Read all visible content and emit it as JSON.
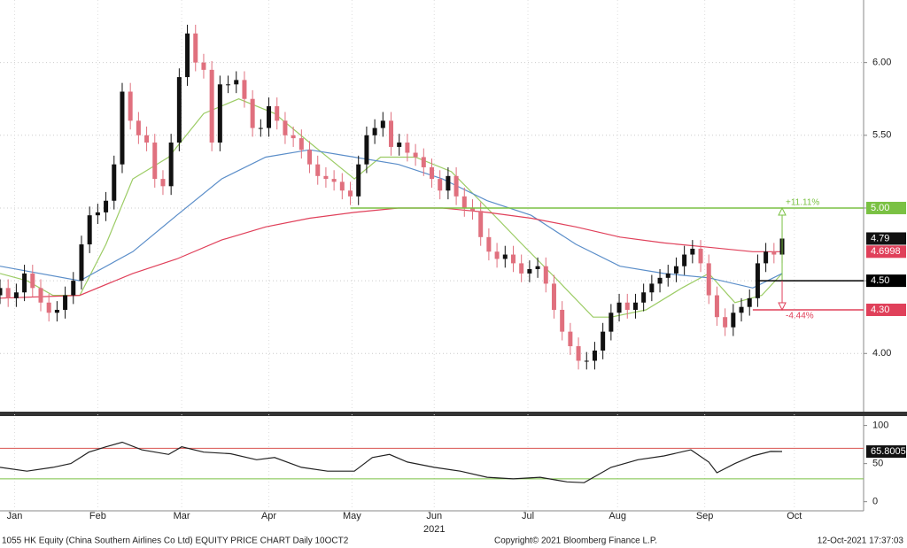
{
  "chart_data": [
    {
      "type": "candlestick",
      "xlim": [
        0,
        106
      ],
      "xticks": [
        {
          "value": 1.8,
          "label": "Jan"
        },
        {
          "value": 12,
          "label": "Feb"
        },
        {
          "value": 22.3,
          "label": "Mar"
        },
        {
          "value": 33,
          "label": "Apr"
        },
        {
          "value": 43.2,
          "label": "May"
        },
        {
          "value": 53.3,
          "label": "Jun"
        },
        {
          "value": 64.8,
          "label": "Jul"
        },
        {
          "value": 75.8,
          "label": "Aug"
        },
        {
          "value": 86.5,
          "label": "Sep"
        },
        {
          "value": 97.5,
          "label": "Oct"
        }
      ],
      "xlabel": "2021",
      "ylim": [
        3.6,
        6.43
      ],
      "yticks": [
        {
          "value": 4,
          "label": "4.00"
        },
        {
          "value": 4.5,
          "label": "4.50"
        },
        {
          "value": 5,
          "label": "5.00"
        },
        {
          "value": 5.5,
          "label": "5.50"
        },
        {
          "value": 6,
          "label": "6.00"
        }
      ],
      "grid": true,
      "up_color": "#111111",
      "down_color": "#e0707e",
      "open": [
        4.4,
        4.45,
        4.38,
        4.42,
        4.55,
        4.45,
        4.35,
        4.28,
        4.3,
        4.4,
        4.5,
        4.75,
        4.95,
        4.97,
        5.05,
        5.3,
        5.8,
        5.6,
        5.5,
        5.45,
        5.2,
        5.15,
        5.45,
        5.9,
        6.2,
        6.0,
        5.95,
        5.45,
        5.85,
        5.85,
        5.88,
        5.75,
        5.55,
        5.55,
        5.7,
        5.6,
        5.5,
        5.48,
        5.4,
        5.3,
        5.22,
        5.2,
        5.18,
        5.12,
        5.08,
        5.3,
        5.5,
        5.55,
        5.6,
        5.42,
        5.45,
        5.38,
        5.35,
        5.28,
        5.2,
        5.12,
        5.22,
        5.08,
        5.0,
        4.98,
        4.8,
        4.7,
        4.65,
        4.68,
        4.62,
        4.55,
        4.58,
        4.6,
        4.48,
        4.3,
        4.15,
        4.05,
        3.95,
        3.95,
        4.02,
        4.15,
        4.28,
        4.35,
        4.3,
        4.35,
        4.42,
        4.48,
        4.52,
        4.55,
        4.6,
        4.68,
        4.72,
        4.62,
        4.4,
        4.25,
        4.18,
        4.28,
        4.32,
        4.38,
        4.62,
        4.7,
        4.68
      ],
      "close": [
        4.45,
        4.38,
        4.42,
        4.55,
        4.45,
        4.35,
        4.28,
        4.3,
        4.4,
        4.5,
        4.75,
        4.95,
        4.97,
        5.05,
        5.3,
        5.8,
        5.6,
        5.5,
        5.45,
        5.2,
        5.15,
        5.45,
        5.9,
        6.2,
        6.0,
        5.95,
        5.45,
        5.85,
        5.85,
        5.88,
        5.75,
        5.55,
        5.55,
        5.7,
        5.6,
        5.5,
        5.48,
        5.4,
        5.3,
        5.22,
        5.2,
        5.18,
        5.12,
        5.08,
        5.3,
        5.5,
        5.55,
        5.6,
        5.42,
        5.45,
        5.38,
        5.35,
        5.28,
        5.2,
        5.12,
        5.22,
        5.08,
        5.0,
        4.98,
        4.8,
        4.7,
        4.65,
        4.68,
        4.62,
        4.55,
        4.58,
        4.6,
        4.48,
        4.3,
        4.15,
        4.05,
        3.95,
        3.95,
        4.02,
        4.15,
        4.28,
        4.35,
        4.3,
        4.35,
        4.42,
        4.48,
        4.52,
        4.55,
        4.6,
        4.68,
        4.72,
        4.62,
        4.4,
        4.25,
        4.18,
        4.28,
        4.32,
        4.38,
        4.62,
        4.7,
        4.68,
        4.79
      ],
      "high": [
        4.51,
        4.51,
        4.48,
        4.61,
        4.61,
        4.51,
        4.41,
        4.36,
        4.46,
        4.56,
        4.81,
        5.01,
        5.03,
        5.11,
        5.36,
        5.86,
        5.86,
        5.66,
        5.56,
        5.51,
        5.26,
        5.51,
        5.96,
        6.26,
        6.26,
        6.06,
        6.01,
        5.91,
        5.91,
        5.94,
        5.94,
        5.81,
        5.61,
        5.76,
        5.76,
        5.66,
        5.56,
        5.54,
        5.46,
        5.36,
        5.28,
        5.26,
        5.24,
        5.18,
        5.36,
        5.56,
        5.61,
        5.66,
        5.66,
        5.51,
        5.51,
        5.44,
        5.41,
        5.34,
        5.26,
        5.28,
        5.28,
        5.14,
        5.06,
        5.04,
        4.86,
        4.76,
        4.74,
        4.74,
        4.68,
        4.64,
        4.66,
        4.66,
        4.54,
        4.36,
        4.21,
        4.11,
        4.01,
        4.08,
        4.21,
        4.34,
        4.41,
        4.41,
        4.41,
        4.48,
        4.54,
        4.58,
        4.61,
        4.66,
        4.74,
        4.78,
        4.78,
        4.68,
        4.46,
        4.31,
        4.34,
        4.38,
        4.44,
        4.68,
        4.76,
        4.76,
        4.85
      ],
      "low": [
        4.34,
        4.32,
        4.32,
        4.36,
        4.39,
        4.29,
        4.22,
        4.22,
        4.24,
        4.34,
        4.44,
        4.69,
        4.89,
        4.91,
        4.99,
        5.24,
        5.54,
        5.44,
        5.39,
        5.14,
        5.09,
        5.09,
        5.39,
        5.84,
        5.94,
        5.89,
        5.39,
        5.39,
        5.79,
        5.79,
        5.69,
        5.49,
        5.49,
        5.49,
        5.54,
        5.44,
        5.42,
        5.34,
        5.24,
        5.16,
        5.14,
        5.12,
        5.06,
        5.02,
        5.02,
        5.24,
        5.44,
        5.49,
        5.36,
        5.36,
        5.32,
        5.29,
        5.22,
        5.14,
        5.06,
        5.06,
        5.02,
        4.94,
        4.92,
        4.74,
        4.64,
        4.59,
        4.59,
        4.56,
        4.49,
        4.49,
        4.52,
        4.42,
        4.24,
        4.09,
        3.99,
        3.89,
        3.89,
        3.89,
        3.96,
        4.09,
        4.22,
        4.24,
        4.24,
        4.29,
        4.36,
        4.42,
        4.46,
        4.49,
        4.54,
        4.62,
        4.56,
        4.34,
        4.19,
        4.12,
        4.12,
        4.22,
        4.26,
        4.32,
        4.56,
        4.62,
        4.62
      ],
      "series": [
        {
          "color": "#9ccc65",
          "x": [
            0,
            3.3,
            6.5,
            9.8,
            13,
            16.3,
            20.7,
            25,
            29.3,
            33.7,
            38,
            43.5,
            46.7,
            51,
            55.4,
            59.8,
            64.1,
            68.5,
            72.8,
            75,
            79.3,
            83.7,
            87,
            90.2,
            93.5,
            96
          ],
          "values": [
            4.55,
            4.5,
            4.4,
            4.4,
            4.75,
            5.2,
            5.35,
            5.65,
            5.75,
            5.65,
            5.45,
            5.2,
            5.35,
            5.35,
            5.25,
            5.0,
            4.75,
            4.5,
            4.25,
            4.25,
            4.3,
            4.45,
            4.55,
            4.35,
            4.4,
            4.55
          ]
        },
        {
          "color": "#5b8ec9",
          "x": [
            0,
            9.8,
            16.3,
            21.7,
            27.2,
            32.6,
            38,
            43.5,
            48.9,
            54.3,
            59.8,
            65.2,
            70.7,
            76.1,
            81.5,
            87,
            92.4,
            96
          ],
          "values": [
            4.6,
            4.5,
            4.7,
            4.95,
            5.2,
            5.35,
            5.4,
            5.35,
            5.3,
            5.2,
            5.05,
            4.95,
            4.75,
            4.6,
            4.55,
            4.52,
            4.45,
            4.55
          ]
        },
        {
          "color": "#e0405a",
          "x": [
            0,
            9.8,
            16.3,
            21.7,
            27.2,
            32.6,
            38,
            43.5,
            48.9,
            54.3,
            59.8,
            65.2,
            70.7,
            76.1,
            81.5,
            87,
            92.4,
            96
          ],
          "values": [
            4.38,
            4.4,
            4.55,
            4.65,
            4.78,
            4.87,
            4.93,
            4.97,
            5.0,
            5.0,
            4.97,
            4.93,
            4.87,
            4.8,
            4.76,
            4.73,
            4.7,
            4.6998
          ]
        }
      ],
      "levels": [
        {
          "value": 5,
          "label": "5.00",
          "color": "#7ac143",
          "x_start": 43,
          "change": "+11.11%"
        },
        {
          "value": 4.5,
          "label": "4.50",
          "color": "#000000",
          "x_start": 93
        },
        {
          "value": 4.3,
          "label": "4.30",
          "color": "#e0405a",
          "x_start": 92.4,
          "change": "-4.44%"
        }
      ],
      "price_labels": [
        {
          "value": 4.79,
          "label": "4.79",
          "color": "#111111"
        },
        {
          "value": 4.6998,
          "label": "4.6998",
          "color": "#e0405a"
        }
      ]
    },
    {
      "type": "line",
      "xlim": [
        0,
        106
      ],
      "ylim": [
        -12,
        110
      ],
      "yticks": [
        0,
        50,
        100
      ],
      "bands": [
        {
          "value": 70,
          "color": "#d9534f"
        },
        {
          "value": 30,
          "color": "#7ac143"
        }
      ],
      "series": [
        {
          "color": "#222222",
          "x": [
            0,
            3.3,
            6.5,
            8.7,
            10.9,
            13,
            15,
            17.4,
            20.7,
            22.3,
            25,
            28.3,
            31.5,
            33.7,
            37,
            40.2,
            43.5,
            45.7,
            47.8,
            50,
            53.3,
            56.5,
            59.8,
            63,
            66.3,
            69.6,
            71.7,
            75,
            78.3,
            81.5,
            84.8,
            87,
            88,
            90.2,
            92.4,
            94.6,
            96
          ],
          "values": [
            45,
            40,
            45,
            50,
            65,
            72,
            78,
            68,
            62,
            72,
            65,
            63,
            55,
            58,
            45,
            40,
            40,
            58,
            62,
            52,
            45,
            40,
            32,
            30,
            32,
            26,
            25,
            45,
            55,
            60,
            68,
            52,
            38,
            50,
            60,
            66,
            65.8005
          ],
          "value_labels": [
            null,
            null,
            null,
            null,
            null,
            null,
            null,
            null,
            null,
            null,
            null,
            null,
            null,
            null,
            null,
            null,
            null,
            null,
            null,
            null,
            null,
            null,
            null,
            null,
            null,
            null,
            null,
            null,
            null,
            null,
            null,
            null,
            null,
            null,
            null,
            null,
            "65.8005"
          ]
        }
      ]
    }
  ],
  "footer": {
    "left": "1055 HK Equity (China Southern Airlines Co Ltd) EQUITY PRICE CHART  Daily 10OCT2",
    "center": "Copyright© 2021 Bloomberg Finance L.P.",
    "right": "12-Oct-2021 17:37:03"
  }
}
